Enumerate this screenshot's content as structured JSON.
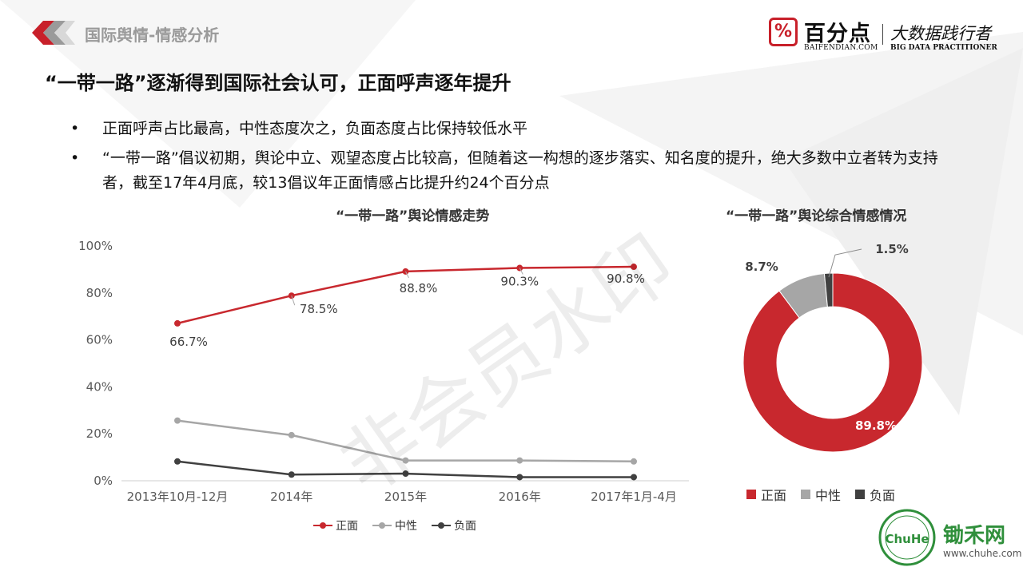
{
  "header": {
    "section_label": "国际舆情-情感分析",
    "brand_name": "百分点",
    "brand_domain": "BAIFENDIAN.COM",
    "brand_slogan": "大数据践行者",
    "brand_slogan_en": "BIG DATA PRACTITIONER"
  },
  "headline": "“一带一路”逐渐得到国际社会认可，正面呼声逐年提升",
  "bullets": [
    "正面呼声占比最高，中性态度次之，负面态度占比保持较低水平",
    " “一带一路”倡议初期，舆论中立、观望态度占比较高，但随着这一构想的逐步落实、知名度的提升，绝大多数中立者转为支持者，截至17年4月底，较13倡议年正面情感占比提升约24个百分点"
  ],
  "watermark": "非会员水印",
  "footer": {
    "chuhe_name": "锄禾网",
    "chuhe_url": "www.chuhe.com",
    "chuhe_logo_text": "ChuHe"
  },
  "colors": {
    "positive": "#c8282e",
    "neutral": "#a6a6a6",
    "negative": "#404040",
    "brand_red": "#c8202a",
    "chuhe_green": "#2f8f3b"
  },
  "chart_data": [
    {
      "type": "line",
      "title": "“一带一路”舆论情感走势",
      "categories": [
        "2013年10月-12月",
        "2014年",
        "2015年",
        "2016年",
        "2017年1月-4月"
      ],
      "ylim": [
        0,
        100
      ],
      "yticks": [
        "0%",
        "20%",
        "40%",
        "60%",
        "80%",
        "100%"
      ],
      "grid": false,
      "legend_position": "bottom",
      "series": [
        {
          "name": "正面",
          "values": [
            66.7,
            78.5,
            88.8,
            90.3,
            90.8
          ],
          "labels": [
            "66.7%",
            "78.5%",
            "88.8%",
            "90.3%",
            "90.8%"
          ],
          "color": "#c8282e"
        },
        {
          "name": "中性",
          "values": [
            25.3,
            19.1,
            8.3,
            8.3,
            7.9
          ],
          "color": "#a6a6a6"
        },
        {
          "name": "负面",
          "values": [
            7.9,
            2.3,
            2.7,
            1.2,
            1.2
          ],
          "color": "#404040"
        }
      ]
    },
    {
      "type": "pie",
      "title": "“一带一路”舆论综合情感情况",
      "donut": true,
      "legend_position": "bottom",
      "slices": [
        {
          "name": "正面",
          "value": 89.8,
          "label": "89.8%",
          "color": "#c8282e"
        },
        {
          "name": "中性",
          "value": 8.7,
          "label": "8.7%",
          "color": "#a6a6a6"
        },
        {
          "name": "负面",
          "value": 1.5,
          "label": "1.5%",
          "color": "#404040"
        }
      ]
    }
  ]
}
